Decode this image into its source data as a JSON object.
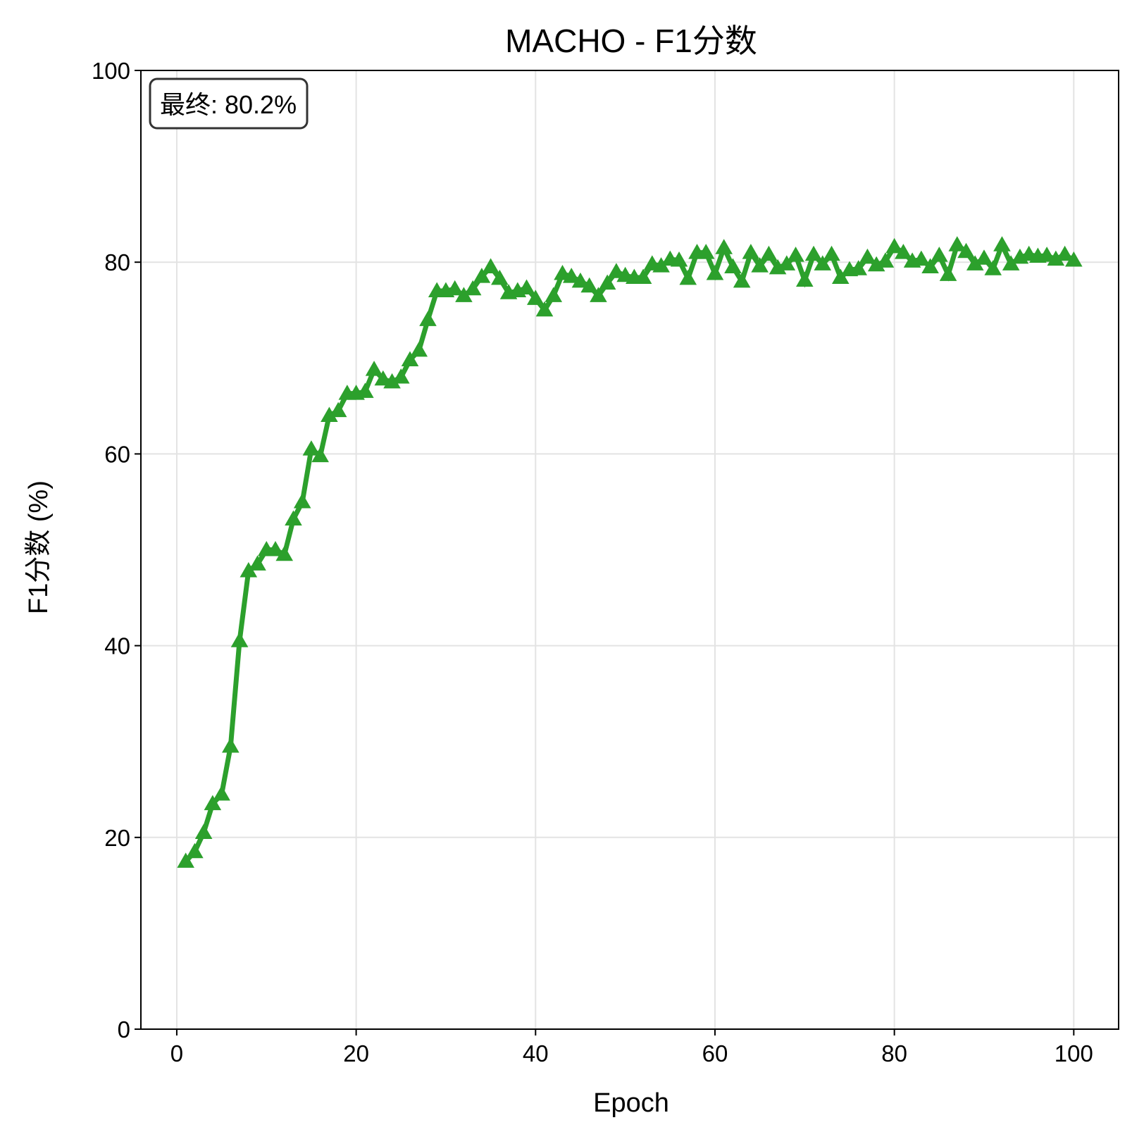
{
  "chart_data": {
    "type": "line",
    "title": "MACHO - F1分数",
    "xlabel": "Epoch",
    "ylabel": "F1分数 (%)",
    "xlim": [
      -4,
      105
    ],
    "ylim": [
      0,
      100
    ],
    "xticks": [
      0,
      20,
      40,
      60,
      80,
      100
    ],
    "yticks": [
      0,
      20,
      40,
      60,
      80,
      100
    ],
    "grid": true,
    "marker": "triangle-up",
    "color": "#2ca02c",
    "annotation": "最终: 80.2%",
    "series": [
      {
        "x": [
          1,
          2,
          3,
          4,
          5,
          6,
          7,
          8,
          9,
          10,
          11,
          12,
          13,
          14,
          15,
          16,
          17,
          18,
          19,
          20,
          21,
          22,
          23,
          24,
          25,
          26,
          27,
          28,
          29,
          30,
          31,
          32,
          33,
          34,
          35,
          36,
          37,
          38,
          39,
          40,
          41,
          42,
          43,
          44,
          45,
          46,
          47,
          48,
          49,
          50,
          51,
          52,
          53,
          54,
          55,
          56,
          57,
          58,
          59,
          60,
          61,
          62,
          63,
          64,
          65,
          66,
          67,
          68,
          69,
          70,
          71,
          72,
          73,
          74,
          75,
          76,
          77,
          78,
          79,
          80,
          81,
          82,
          83,
          84,
          85,
          86,
          87,
          88,
          89,
          90,
          91,
          92,
          93,
          94,
          95,
          96,
          97,
          98,
          99,
          100
        ],
        "values": [
          17.5,
          18.5,
          20.5,
          23.5,
          24.5,
          29.5,
          40.5,
          47.8,
          48.5,
          50.0,
          50.0,
          49.5,
          53.2,
          55.0,
          60.5,
          59.8,
          64.0,
          64.5,
          66.3,
          66.3,
          66.5,
          68.8,
          67.8,
          67.5,
          68.0,
          69.8,
          70.8,
          74.0,
          77.0,
          77.0,
          77.2,
          76.5,
          77.2,
          78.5,
          79.5,
          78.3,
          76.8,
          77.0,
          77.3,
          76.2,
          75.0,
          76.5,
          78.8,
          78.5,
          78.0,
          77.5,
          76.5,
          77.8,
          79.0,
          78.6,
          78.4,
          78.4,
          79.8,
          79.6,
          80.3,
          80.2,
          78.3,
          81.0,
          81.0,
          78.8,
          81.5,
          79.5,
          78.0,
          81.0,
          79.6,
          80.8,
          79.4,
          79.8,
          80.7,
          78.1,
          80.8,
          79.8,
          80.8,
          78.4,
          79.2,
          79.3,
          80.5,
          79.7,
          80.1,
          81.6,
          81.0,
          80.1,
          80.3,
          79.5,
          80.7,
          78.7,
          81.8,
          81.1,
          79.8,
          80.4,
          79.3,
          81.8,
          79.8,
          80.5,
          80.8,
          80.6,
          80.7,
          80.3,
          80.8,
          80.2
        ]
      }
    ]
  }
}
